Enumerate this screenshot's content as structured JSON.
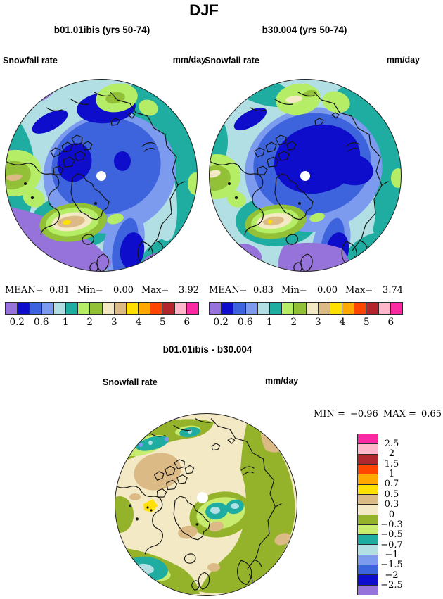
{
  "title": "DJF",
  "panels": [
    {
      "title": "b01.01ibis (yrs 50-74)",
      "field": "Snowfall rate",
      "units": "mm/day",
      "stats": {
        "mean_label": "MEAN=",
        "mean": "0.81",
        "min_label": "Min=",
        "min": "0.00",
        "max_label": "Max=",
        "max": "3.92"
      }
    },
    {
      "title": "b30.004 (yrs 50-74)",
      "field": "Snowfall rate",
      "units": "mm/day",
      "stats": {
        "mean_label": "MEAN=",
        "mean": "0.83",
        "min_label": "Min=",
        "min": "0.00",
        "max_label": "Max=",
        "max": "3.74"
      }
    }
  ],
  "colorbar": {
    "colors": [
      "#9673da",
      "#0d0dcb",
      "#3e64dd",
      "#7c9bee",
      "#b2dfe3",
      "#1fada2",
      "#b5ee66",
      "#92c138",
      "#f3e9c5",
      "#dcba85",
      "#ffe000",
      "#ffa800",
      "#ff4500",
      "#b2272d",
      "#ffb7c9",
      "#fb2aa2"
    ],
    "tick_labels": [
      "0.2",
      "0.6",
      "1",
      "2",
      "3",
      "4",
      "5",
      "6"
    ],
    "tick_boundaries": [
      1,
      3,
      5,
      7,
      9,
      11,
      13,
      15
    ]
  },
  "diff": {
    "title": "b01.01ibis - b30.004",
    "field": "Snowfall rate",
    "units": "mm/day",
    "stats": {
      "min_label": "MIN =",
      "min": "−0.96",
      "max_label": "MAX =",
      "max": "0.65"
    },
    "colorbar": {
      "colors": [
        "#fb2aa2",
        "#ffb7c9",
        "#b2272d",
        "#ff4500",
        "#ffa800",
        "#ffe000",
        "#dcba85",
        "#f3e9c5",
        "#94b32b",
        "#c8ec70",
        "#1fada2",
        "#b2dfe3",
        "#7c9bee",
        "#3e64dd",
        "#0d0dcb",
        "#9673da"
      ],
      "tick_labels": [
        "2.5",
        "2",
        "1.5",
        "1",
        "0.7",
        "0.5",
        "0.3",
        "0",
        "−0.3",
        "−0.5",
        "−0.7",
        "−1",
        "−1.5",
        "−2",
        "−2.5"
      ]
    }
  },
  "chart_data": [
    {
      "type": "heatmap",
      "subtype": "north-polar-stereographic-contour-map",
      "season": "DJF",
      "title": "b01.01ibis (yrs 50-74)",
      "variable": "Snowfall rate",
      "units": "mm/day",
      "mean": 0.81,
      "min": 0.0,
      "max": 3.92,
      "n_color_bands": 16,
      "contour_boundaries": [
        0.2,
        0.4,
        0.6,
        0.8,
        1,
        1.5,
        2,
        2.5,
        3,
        3.5,
        4,
        4.5,
        5,
        5.5,
        6
      ],
      "labeled_ticks": [
        0.2,
        0.6,
        1,
        2,
        3,
        4,
        5,
        6
      ]
    },
    {
      "type": "heatmap",
      "subtype": "north-polar-stereographic-contour-map",
      "season": "DJF",
      "title": "b30.004 (yrs 50-74)",
      "variable": "Snowfall rate",
      "units": "mm/day",
      "mean": 0.83,
      "min": 0.0,
      "max": 3.74,
      "n_color_bands": 16,
      "contour_boundaries": [
        0.2,
        0.4,
        0.6,
        0.8,
        1,
        1.5,
        2,
        2.5,
        3,
        3.5,
        4,
        4.5,
        5,
        5.5,
        6
      ],
      "labeled_ticks": [
        0.2,
        0.6,
        1,
        2,
        3,
        4,
        5,
        6
      ]
    },
    {
      "type": "heatmap",
      "subtype": "north-polar-stereographic-contour-difference-map",
      "season": "DJF",
      "title": "b01.01ibis - b30.004",
      "variable": "Snowfall rate difference",
      "units": "mm/day",
      "min": -0.96,
      "max": 0.65,
      "n_color_bands": 16,
      "contour_boundaries": [
        2.5,
        2,
        1.5,
        1,
        0.7,
        0.5,
        0.3,
        0,
        -0.3,
        -0.5,
        -0.7,
        -1,
        -1.5,
        -2,
        -2.5
      ]
    }
  ]
}
